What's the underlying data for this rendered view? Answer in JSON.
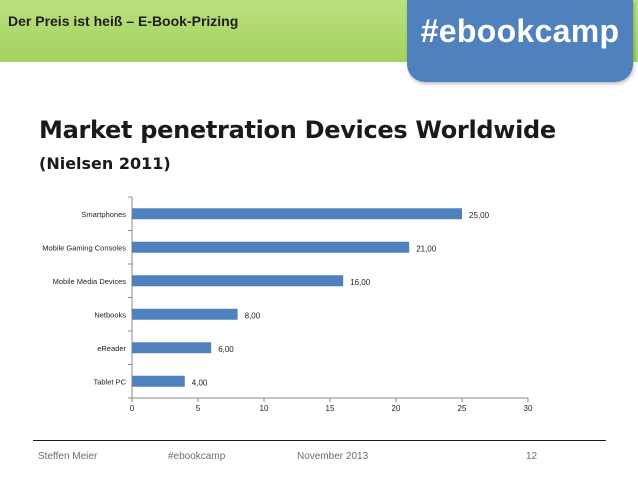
{
  "header": {
    "title": "Der Preis ist heiß – E-Book-Prizing",
    "tag": "#ebookcamp"
  },
  "slide": {
    "title": "Market penetration Devices Worldwide",
    "subtitle": "(Nielsen 2011)"
  },
  "colors": {
    "header_green": "#a4d25e",
    "badge_blue": "#4f81bd",
    "bar_blue": "#4f81bd"
  },
  "chart_data": {
    "type": "bar",
    "orientation": "horizontal",
    "categories": [
      "Smartphones",
      "Mobile Gaming Consoles",
      "Mobile Media Devices",
      "Netbooks",
      "eReader",
      "Tablet PC"
    ],
    "values": [
      25,
      21,
      16,
      8,
      6,
      4
    ],
    "value_labels": [
      "25,00",
      "21,00",
      "16,00",
      "8,00",
      "6,00",
      "4,00"
    ],
    "xticks": [
      "0",
      "5",
      "10",
      "15",
      "20",
      "25",
      "30"
    ],
    "xlim": [
      0,
      30
    ],
    "title": "",
    "xlabel": "",
    "ylabel": "",
    "grid": false,
    "legend": "none"
  },
  "footer": {
    "author": "Steffen Meier",
    "tag": "#ebookcamp",
    "date": "November 2013",
    "page": "12"
  }
}
